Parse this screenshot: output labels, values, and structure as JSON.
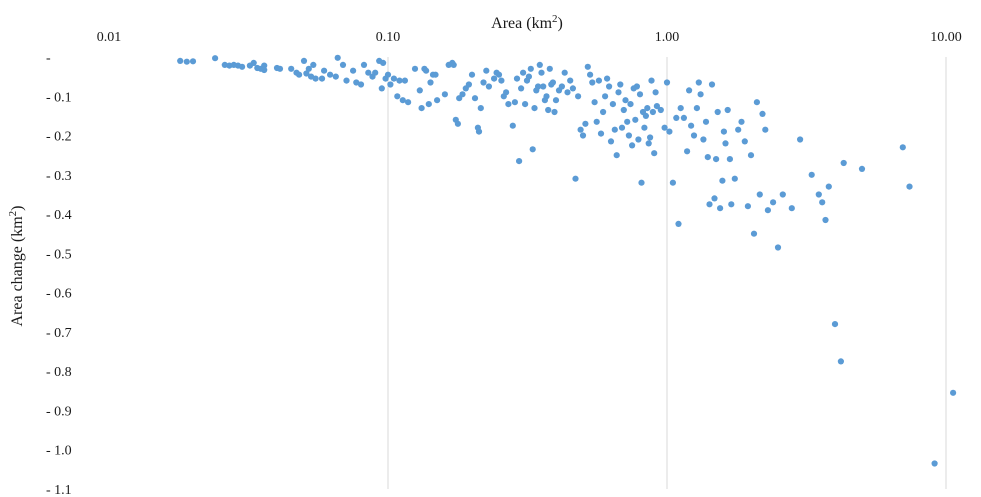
{
  "chart_data": {
    "type": "scatter",
    "title": "",
    "xlabel": "Area (km",
    "xlabel_sup": "2",
    "xlabel_close": ")",
    "ylabel": "Area change (km",
    "ylabel_sup": "2",
    "ylabel_close": ")",
    "x_scale": "log",
    "xlim": [
      0.01,
      12
    ],
    "ylim": [
      -1.1,
      0
    ],
    "x_ticks": [
      0.01,
      0.1,
      1,
      10
    ],
    "x_tick_labels": [
      "0.01",
      "0.10",
      "1.00",
      "10.00"
    ],
    "y_ticks": [
      0,
      -0.1,
      -0.2,
      -0.3,
      -0.4,
      -0.5,
      -0.6,
      -0.7,
      -0.8,
      -0.9,
      -1.0,
      -1.1
    ],
    "y_tick_labels": [
      "-",
      "- 0.1",
      "- 0.2",
      "- 0.3",
      "- 0.4",
      "- 0.5",
      "- 0.6",
      "- 0.7",
      "- 0.8",
      "- 0.9",
      "- 1.0",
      "- 1.1"
    ],
    "grid": "vertical",
    "x_axis_position": "top",
    "marker_color": "#5b9bd5",
    "points": [
      [
        0.018,
        -0.01
      ],
      [
        0.019,
        -0.012
      ],
      [
        0.02,
        -0.011
      ],
      [
        0.024,
        -0.003
      ],
      [
        0.026,
        -0.02
      ],
      [
        0.027,
        -0.022
      ],
      [
        0.028,
        -0.02
      ],
      [
        0.029,
        -0.022
      ],
      [
        0.03,
        -0.025
      ],
      [
        0.032,
        -0.022
      ],
      [
        0.033,
        -0.015
      ],
      [
        0.034,
        -0.028
      ],
      [
        0.035,
        -0.03
      ],
      [
        0.036,
        -0.022
      ],
      [
        0.036,
        -0.033
      ],
      [
        0.04,
        -0.028
      ],
      [
        0.041,
        -0.03
      ],
      [
        0.045,
        -0.03
      ],
      [
        0.047,
        -0.04
      ],
      [
        0.048,
        -0.045
      ],
      [
        0.05,
        -0.01
      ],
      [
        0.051,
        -0.042
      ],
      [
        0.052,
        -0.03
      ],
      [
        0.053,
        -0.05
      ],
      [
        0.054,
        -0.02
      ],
      [
        0.055,
        -0.055
      ],
      [
        0.058,
        -0.055
      ],
      [
        0.059,
        -0.035
      ],
      [
        0.062,
        -0.045
      ],
      [
        0.065,
        -0.05
      ],
      [
        0.066,
        -0.002
      ],
      [
        0.069,
        -0.02
      ],
      [
        0.071,
        -0.06
      ],
      [
        0.075,
        -0.035
      ],
      [
        0.077,
        -0.065
      ],
      [
        0.08,
        -0.07
      ],
      [
        0.082,
        -0.02
      ],
      [
        0.085,
        -0.04
      ],
      [
        0.088,
        -0.05
      ],
      [
        0.09,
        -0.04
      ],
      [
        0.093,
        -0.01
      ],
      [
        0.095,
        -0.08
      ],
      [
        0.096,
        -0.015
      ],
      [
        0.098,
        -0.055
      ],
      [
        0.1,
        -0.045
      ],
      [
        0.102,
        -0.07
      ],
      [
        0.105,
        -0.055
      ],
      [
        0.108,
        -0.1
      ],
      [
        0.11,
        -0.06
      ],
      [
        0.113,
        -0.11
      ],
      [
        0.115,
        -0.06
      ],
      [
        0.118,
        -0.115
      ],
      [
        0.125,
        -0.03
      ],
      [
        0.13,
        -0.085
      ],
      [
        0.132,
        -0.13
      ],
      [
        0.135,
        -0.03
      ],
      [
        0.137,
        -0.035
      ],
      [
        0.14,
        -0.12
      ],
      [
        0.142,
        -0.065
      ],
      [
        0.145,
        -0.045
      ],
      [
        0.148,
        -0.045
      ],
      [
        0.15,
        -0.11
      ],
      [
        0.16,
        -0.095
      ],
      [
        0.165,
        -0.02
      ],
      [
        0.17,
        -0.015
      ],
      [
        0.172,
        -0.02
      ],
      [
        0.175,
        -0.16
      ],
      [
        0.178,
        -0.17
      ],
      [
        0.18,
        -0.105
      ],
      [
        0.185,
        -0.095
      ],
      [
        0.19,
        -0.08
      ],
      [
        0.195,
        -0.07
      ],
      [
        0.2,
        -0.045
      ],
      [
        0.205,
        -0.105
      ],
      [
        0.21,
        -0.18
      ],
      [
        0.212,
        -0.19
      ],
      [
        0.215,
        -0.13
      ],
      [
        0.22,
        -0.065
      ],
      [
        0.225,
        -0.035
      ],
      [
        0.23,
        -0.075
      ],
      [
        0.24,
        -0.055
      ],
      [
        0.245,
        -0.04
      ],
      [
        0.25,
        -0.045
      ],
      [
        0.255,
        -0.06
      ],
      [
        0.26,
        -0.1
      ],
      [
        0.265,
        -0.09
      ],
      [
        0.27,
        -0.12
      ],
      [
        0.28,
        -0.175
      ],
      [
        0.285,
        -0.115
      ],
      [
        0.29,
        -0.055
      ],
      [
        0.295,
        -0.265
      ],
      [
        0.3,
        -0.08
      ],
      [
        0.305,
        -0.04
      ],
      [
        0.31,
        -0.12
      ],
      [
        0.315,
        -0.06
      ],
      [
        0.32,
        -0.05
      ],
      [
        0.325,
        -0.03
      ],
      [
        0.33,
        -0.235
      ],
      [
        0.335,
        -0.13
      ],
      [
        0.34,
        -0.085
      ],
      [
        0.345,
        -0.075
      ],
      [
        0.35,
        -0.02
      ],
      [
        0.355,
        -0.04
      ],
      [
        0.36,
        -0.075
      ],
      [
        0.365,
        -0.11
      ],
      [
        0.37,
        -0.1
      ],
      [
        0.375,
        -0.135
      ],
      [
        0.38,
        -0.03
      ],
      [
        0.385,
        -0.07
      ],
      [
        0.39,
        -0.065
      ],
      [
        0.395,
        -0.14
      ],
      [
        0.4,
        -0.11
      ],
      [
        0.41,
        -0.085
      ],
      [
        0.42,
        -0.075
      ],
      [
        0.43,
        -0.04
      ],
      [
        0.44,
        -0.09
      ],
      [
        0.45,
        -0.06
      ],
      [
        0.46,
        -0.08
      ],
      [
        0.47,
        -0.31
      ],
      [
        0.48,
        -0.1
      ],
      [
        0.49,
        -0.185
      ],
      [
        0.5,
        -0.2
      ],
      [
        0.51,
        -0.17
      ],
      [
        0.52,
        -0.025
      ],
      [
        0.53,
        -0.045
      ],
      [
        0.54,
        -0.065
      ],
      [
        0.55,
        -0.115
      ],
      [
        0.56,
        -0.165
      ],
      [
        0.57,
        -0.06
      ],
      [
        0.58,
        -0.195
      ],
      [
        0.59,
        -0.14
      ],
      [
        0.6,
        -0.1
      ],
      [
        0.61,
        -0.055
      ],
      [
        0.62,
        -0.075
      ],
      [
        0.63,
        -0.215
      ],
      [
        0.64,
        -0.12
      ],
      [
        0.65,
        -0.185
      ],
      [
        0.66,
        -0.25
      ],
      [
        0.67,
        -0.09
      ],
      [
        0.68,
        -0.07
      ],
      [
        0.69,
        -0.18
      ],
      [
        0.7,
        -0.135
      ],
      [
        0.71,
        -0.11
      ],
      [
        0.72,
        -0.165
      ],
      [
        0.73,
        -0.2
      ],
      [
        0.74,
        -0.12
      ],
      [
        0.75,
        -0.225
      ],
      [
        0.76,
        -0.08
      ],
      [
        0.77,
        -0.16
      ],
      [
        0.78,
        -0.075
      ],
      [
        0.79,
        -0.21
      ],
      [
        0.8,
        -0.095
      ],
      [
        0.81,
        -0.32
      ],
      [
        0.82,
        -0.14
      ],
      [
        0.83,
        -0.18
      ],
      [
        0.84,
        -0.15
      ],
      [
        0.85,
        -0.13
      ],
      [
        0.86,
        -0.22
      ],
      [
        0.87,
        -0.205
      ],
      [
        0.88,
        -0.06
      ],
      [
        0.89,
        -0.14
      ],
      [
        0.9,
        -0.245
      ],
      [
        0.91,
        -0.09
      ],
      [
        0.92,
        -0.125
      ],
      [
        0.95,
        -0.135
      ],
      [
        0.98,
        -0.18
      ],
      [
        1.0,
        -0.065
      ],
      [
        1.02,
        -0.19
      ],
      [
        1.05,
        -0.32
      ],
      [
        1.08,
        -0.155
      ],
      [
        1.1,
        -0.425
      ],
      [
        1.12,
        -0.13
      ],
      [
        1.15,
        -0.155
      ],
      [
        1.18,
        -0.24
      ],
      [
        1.2,
        -0.085
      ],
      [
        1.22,
        -0.175
      ],
      [
        1.25,
        -0.2
      ],
      [
        1.28,
        -0.13
      ],
      [
        1.3,
        -0.065
      ],
      [
        1.32,
        -0.095
      ],
      [
        1.35,
        -0.21
      ],
      [
        1.38,
        -0.165
      ],
      [
        1.4,
        -0.255
      ],
      [
        1.42,
        -0.375
      ],
      [
        1.45,
        -0.07
      ],
      [
        1.48,
        -0.36
      ],
      [
        1.5,
        -0.26
      ],
      [
        1.52,
        -0.14
      ],
      [
        1.55,
        -0.385
      ],
      [
        1.58,
        -0.315
      ],
      [
        1.6,
        -0.19
      ],
      [
        1.62,
        -0.22
      ],
      [
        1.65,
        -0.135
      ],
      [
        1.68,
        -0.26
      ],
      [
        1.7,
        -0.375
      ],
      [
        1.75,
        -0.31
      ],
      [
        1.8,
        -0.185
      ],
      [
        1.85,
        -0.165
      ],
      [
        1.9,
        -0.215
      ],
      [
        1.95,
        -0.38
      ],
      [
        2.0,
        -0.25
      ],
      [
        2.05,
        -0.45
      ],
      [
        2.1,
        -0.115
      ],
      [
        2.15,
        -0.35
      ],
      [
        2.2,
        -0.145
      ],
      [
        2.25,
        -0.185
      ],
      [
        2.3,
        -0.39
      ],
      [
        2.4,
        -0.37
      ],
      [
        2.5,
        -0.485
      ],
      [
        2.6,
        -0.35
      ],
      [
        2.8,
        -0.385
      ],
      [
        3.0,
        -0.21
      ],
      [
        3.3,
        -0.3
      ],
      [
        3.5,
        -0.35
      ],
      [
        3.6,
        -0.37
      ],
      [
        3.7,
        -0.415
      ],
      [
        3.8,
        -0.33
      ],
      [
        4.0,
        -0.68
      ],
      [
        4.2,
        -0.775
      ],
      [
        4.3,
        -0.27
      ],
      [
        5.0,
        -0.285
      ],
      [
        7.0,
        -0.23
      ],
      [
        7.4,
        -0.33
      ],
      [
        9.1,
        -1.035
      ],
      [
        10.6,
        -0.855
      ]
    ]
  }
}
